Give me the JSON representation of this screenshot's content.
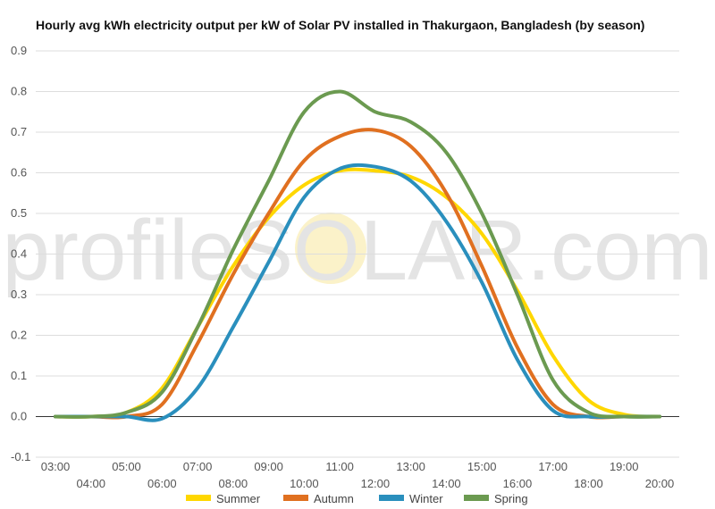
{
  "chart_data": {
    "type": "line",
    "title": "Hourly avg kWh electricity output per kW of Solar PV installed in Thakurgaon, Bangladesh (by season)",
    "xlabel": "",
    "ylabel": "",
    "ylim": [
      -0.1,
      0.9
    ],
    "yticks": [
      "-0.1",
      "0.0",
      "0.1",
      "0.2",
      "0.3",
      "0.4",
      "0.5",
      "0.6",
      "0.7",
      "0.8",
      "0.9"
    ],
    "x": [
      "03:00",
      "04:00",
      "05:00",
      "06:00",
      "07:00",
      "08:00",
      "09:00",
      "10:00",
      "11:00",
      "12:00",
      "13:00",
      "14:00",
      "15:00",
      "16:00",
      "17:00",
      "18:00",
      "19:00",
      "20:00"
    ],
    "grid": true,
    "legend_position": "bottom",
    "series": [
      {
        "name": "Summer",
        "color": "#ffd700",
        "values": [
          0.0,
          0.0,
          0.01,
          0.07,
          0.22,
          0.37,
          0.49,
          0.57,
          0.605,
          0.605,
          0.59,
          0.54,
          0.45,
          0.31,
          0.15,
          0.04,
          0.005,
          0.0
        ]
      },
      {
        "name": "Autumn",
        "color": "#e07020",
        "values": [
          0.0,
          0.0,
          0.0,
          0.03,
          0.18,
          0.35,
          0.5,
          0.63,
          0.69,
          0.705,
          0.665,
          0.55,
          0.37,
          0.17,
          0.03,
          0.0,
          0.0,
          0.0
        ]
      },
      {
        "name": "Winter",
        "color": "#2a8fbd",
        "values": [
          0.0,
          0.0,
          0.0,
          -0.005,
          0.07,
          0.22,
          0.38,
          0.54,
          0.61,
          0.615,
          0.58,
          0.48,
          0.33,
          0.14,
          0.015,
          0.0,
          0.0,
          0.0
        ]
      },
      {
        "name": "Spring",
        "color": "#6b9a50",
        "values": [
          0.0,
          0.0,
          0.01,
          0.06,
          0.22,
          0.41,
          0.58,
          0.75,
          0.8,
          0.75,
          0.725,
          0.65,
          0.5,
          0.3,
          0.09,
          0.01,
          0.0,
          0.0
        ]
      }
    ],
    "watermark": "profileSOLAR.com"
  }
}
